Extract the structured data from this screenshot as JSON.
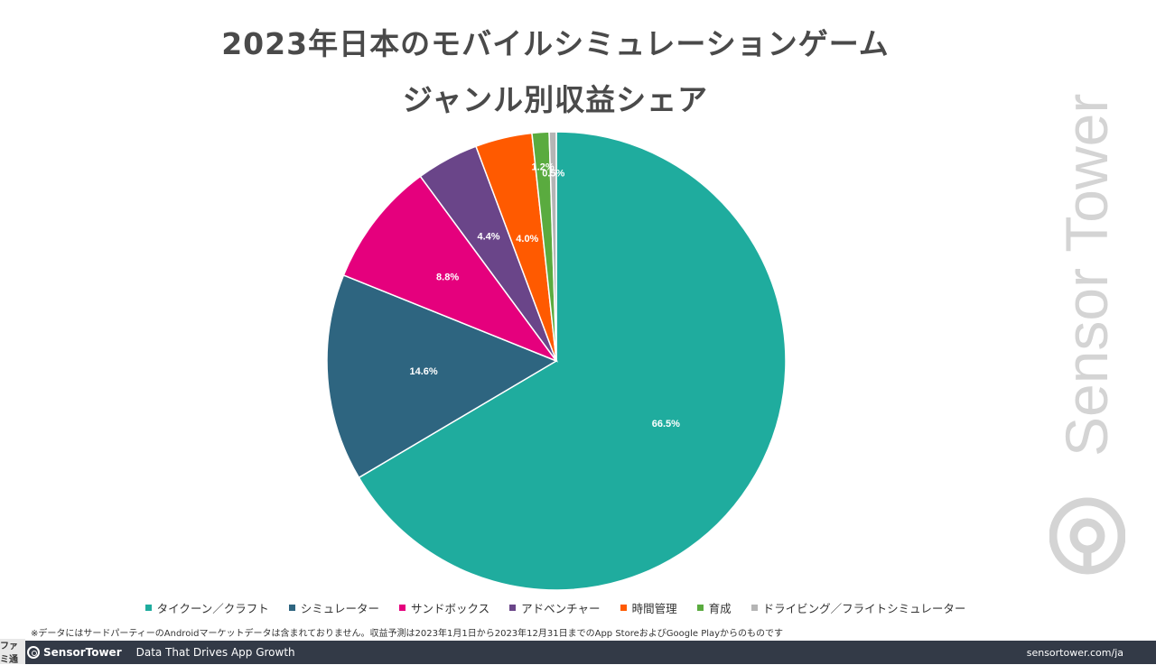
{
  "title": {
    "line1": "2023年日本のモバイルシミュレーションゲーム",
    "line2": "ジャンル別収益シェア"
  },
  "chart_data": {
    "type": "pie",
    "title": "2023年日本のモバイルシミュレーションゲーム ジャンル別収益シェア",
    "categories": [
      "タイクーン／クラフト",
      "シミュレーター",
      "サンドボックス",
      "アドベンチャー",
      "時間管理",
      "育成",
      "ドライビング／フライトシミュレーター"
    ],
    "values": [
      66.5,
      14.6,
      8.8,
      4.4,
      4.0,
      1.2,
      0.5
    ],
    "labels": [
      "66.5%",
      "14.6%",
      "8.8%",
      "4.4%",
      "4.0%",
      "1.2%",
      "0.5%"
    ],
    "colors": [
      "#1fac9e",
      "#2e6580",
      "#e5007d",
      "#6a4589",
      "#ff5a00",
      "#5aab3f",
      "#b5b5b5"
    ],
    "legend_position": "bottom",
    "start_angle": "top",
    "direction": "clockwise"
  },
  "footnote": "※データにはサードパーティーのAndroidマーケットデータは含まれておりません。収益予測は2023年1月1日から2023年12月31日までのApp StoreおよびGoogle Playからのものです",
  "watermark": "Sensor Tower",
  "footer": {
    "logo_text": "SensorTower",
    "tagline": "Data That Drives App Growth",
    "url": "sensortower.com/ja",
    "background": "#333a47"
  },
  "corner_badge": "ファミ通"
}
